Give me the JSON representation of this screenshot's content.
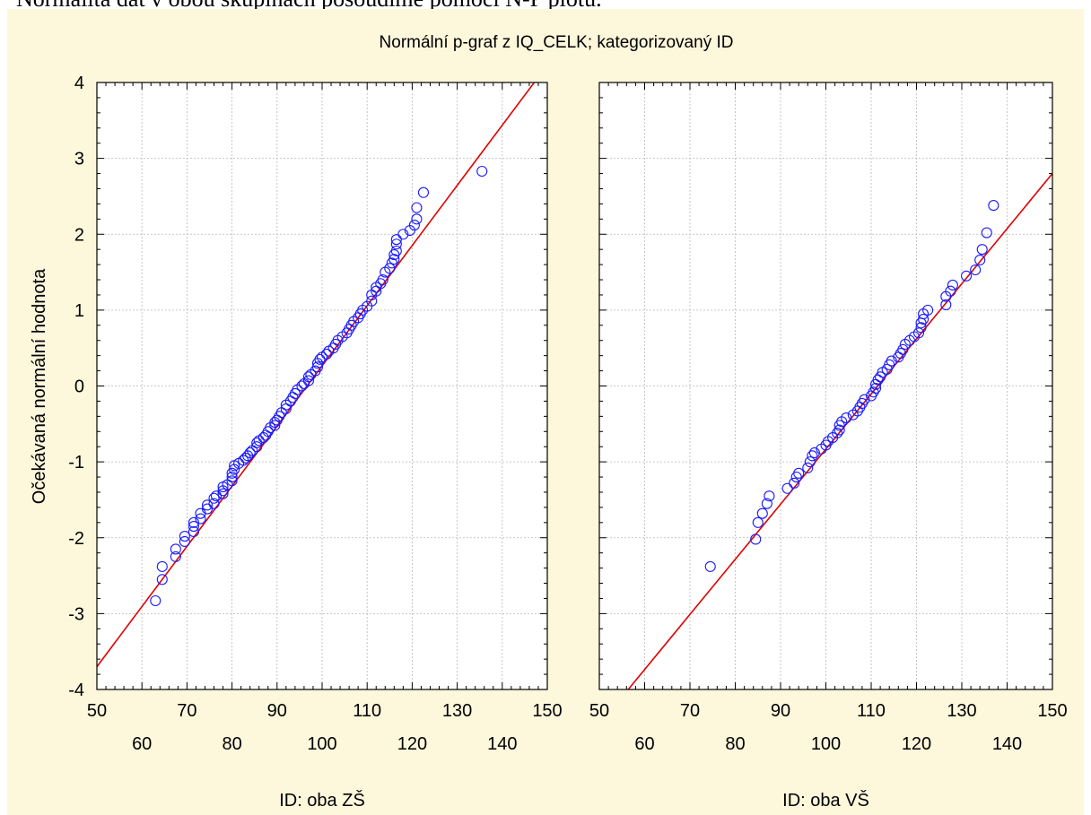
{
  "caption": "Normalita dat v obou skupinách posoudíme pomocí N-P plotu.",
  "chart_data": {
    "type": "scatter",
    "title": "Normální p-graf z IQ_CELK; kategorizovaný ID",
    "ylabel": "Očekávaná normální hodnota",
    "xlim": [
      50,
      150
    ],
    "ylim": [
      -4,
      4
    ],
    "x_ticks_top_row": [
      "50",
      "70",
      "90",
      "110",
      "130",
      "150"
    ],
    "x_ticks_bottom_row": [
      "60",
      "80",
      "100",
      "120",
      "140"
    ],
    "y_ticks": [
      "4",
      "3",
      "2",
      "1",
      "0",
      "-1",
      "-2",
      "-3",
      "-4"
    ],
    "grid": true,
    "panels": [
      {
        "xlabel": "ID: oba ZŠ",
        "line": {
          "x": [
            50,
            150
          ],
          "y": [
            -3.7,
            4.23
          ]
        },
        "points": [
          [
            63,
            -2.83
          ],
          [
            64.5,
            -2.55
          ],
          [
            64.5,
            -2.38
          ],
          [
            67.5,
            -2.25
          ],
          [
            67.5,
            -2.15
          ],
          [
            69.5,
            -2.05
          ],
          [
            69.5,
            -1.98
          ],
          [
            71.5,
            -1.92
          ],
          [
            71.5,
            -1.85
          ],
          [
            71.5,
            -1.8
          ],
          [
            73,
            -1.75
          ],
          [
            73,
            -1.68
          ],
          [
            74.5,
            -1.62
          ],
          [
            74.5,
            -1.57
          ],
          [
            76,
            -1.55
          ],
          [
            76,
            -1.48
          ],
          [
            76.5,
            -1.45
          ],
          [
            78,
            -1.42
          ],
          [
            78,
            -1.38
          ],
          [
            78,
            -1.33
          ],
          [
            79,
            -1.3
          ],
          [
            80,
            -1.25
          ],
          [
            80,
            -1.2
          ],
          [
            80,
            -1.15
          ],
          [
            80.5,
            -1.1
          ],
          [
            80.5,
            -1.05
          ],
          [
            81.5,
            -1.02
          ],
          [
            82.5,
            -0.98
          ],
          [
            83,
            -0.95
          ],
          [
            83.5,
            -0.92
          ],
          [
            84,
            -0.88
          ],
          [
            84.5,
            -0.85
          ],
          [
            85.5,
            -0.8
          ],
          [
            85.5,
            -0.75
          ],
          [
            86,
            -0.72
          ],
          [
            87,
            -0.68
          ],
          [
            87.5,
            -0.65
          ],
          [
            88,
            -0.6
          ],
          [
            88.5,
            -0.55
          ],
          [
            89.5,
            -0.52
          ],
          [
            89.5,
            -0.48
          ],
          [
            90,
            -0.45
          ],
          [
            90.5,
            -0.4
          ],
          [
            91,
            -0.35
          ],
          [
            92,
            -0.3
          ],
          [
            92,
            -0.25
          ],
          [
            93,
            -0.2
          ],
          [
            93.5,
            -0.15
          ],
          [
            94,
            -0.1
          ],
          [
            94.5,
            -0.05
          ],
          [
            95.5,
            0
          ],
          [
            96,
            0.03
          ],
          [
            97,
            0.07
          ],
          [
            97,
            0.12
          ],
          [
            97.5,
            0.15
          ],
          [
            98.5,
            0.2
          ],
          [
            99,
            0.25
          ],
          [
            99,
            0.3
          ],
          [
            99.5,
            0.35
          ],
          [
            100,
            0.38
          ],
          [
            101,
            0.42
          ],
          [
            101.5,
            0.46
          ],
          [
            102.5,
            0.5
          ],
          [
            103,
            0.55
          ],
          [
            103.5,
            0.6
          ],
          [
            104.5,
            0.65
          ],
          [
            105.5,
            0.7
          ],
          [
            106,
            0.75
          ],
          [
            106.5,
            0.8
          ],
          [
            107,
            0.85
          ],
          [
            108,
            0.9
          ],
          [
            108.5,
            0.95
          ],
          [
            109,
            1.0
          ],
          [
            110,
            1.05
          ],
          [
            111,
            1.12
          ],
          [
            111,
            1.2
          ],
          [
            112,
            1.25
          ],
          [
            112,
            1.3
          ],
          [
            113,
            1.35
          ],
          [
            113.5,
            1.4
          ],
          [
            114,
            1.5
          ],
          [
            115,
            1.55
          ],
          [
            115.5,
            1.62
          ],
          [
            116,
            1.67
          ],
          [
            116,
            1.73
          ],
          [
            116.5,
            1.78
          ],
          [
            116.5,
            1.87
          ],
          [
            116.5,
            1.93
          ],
          [
            118,
            2.0
          ],
          [
            119.5,
            2.05
          ],
          [
            120.5,
            2.12
          ],
          [
            121,
            2.2
          ],
          [
            121,
            2.35
          ],
          [
            122.5,
            2.55
          ],
          [
            135.5,
            2.83
          ]
        ]
      },
      {
        "xlabel": "ID: oba VŠ",
        "line": {
          "x": [
            55,
            150
          ],
          "y": [
            -4.1,
            2.8
          ]
        },
        "points": [
          [
            74.5,
            -2.38
          ],
          [
            84.5,
            -2.02
          ],
          [
            85,
            -1.8
          ],
          [
            86,
            -1.68
          ],
          [
            87,
            -1.55
          ],
          [
            87.5,
            -1.45
          ],
          [
            91.5,
            -1.35
          ],
          [
            93,
            -1.28
          ],
          [
            93.5,
            -1.2
          ],
          [
            94,
            -1.15
          ],
          [
            96,
            -1.08
          ],
          [
            96.5,
            -1.0
          ],
          [
            97,
            -0.92
          ],
          [
            97.5,
            -0.88
          ],
          [
            99,
            -0.83
          ],
          [
            100,
            -0.78
          ],
          [
            100.5,
            -0.73
          ],
          [
            101.5,
            -0.68
          ],
          [
            102.5,
            -0.62
          ],
          [
            103,
            -0.58
          ],
          [
            103,
            -0.52
          ],
          [
            103.5,
            -0.47
          ],
          [
            104.5,
            -0.42
          ],
          [
            106,
            -0.38
          ],
          [
            107,
            -0.33
          ],
          [
            107.5,
            -0.28
          ],
          [
            108,
            -0.23
          ],
          [
            108.5,
            -0.18
          ],
          [
            110,
            -0.13
          ],
          [
            110.5,
            -0.08
          ],
          [
            111,
            -0.03
          ],
          [
            111,
            0.02
          ],
          [
            111.5,
            0.08
          ],
          [
            112,
            0.12
          ],
          [
            112.5,
            0.18
          ],
          [
            113.5,
            0.22
          ],
          [
            114,
            0.28
          ],
          [
            114.5,
            0.33
          ],
          [
            116,
            0.38
          ],
          [
            116.5,
            0.43
          ],
          [
            117,
            0.48
          ],
          [
            117.5,
            0.55
          ],
          [
            118.5,
            0.6
          ],
          [
            119.5,
            0.65
          ],
          [
            120.5,
            0.7
          ],
          [
            121,
            0.77
          ],
          [
            121,
            0.83
          ],
          [
            121.5,
            0.88
          ],
          [
            121.5,
            0.95
          ],
          [
            122.5,
            1.0
          ],
          [
            126.5,
            1.07
          ],
          [
            126.5,
            1.18
          ],
          [
            127.5,
            1.25
          ],
          [
            128,
            1.33
          ],
          [
            131,
            1.45
          ],
          [
            133,
            1.53
          ],
          [
            134,
            1.66
          ],
          [
            134.5,
            1.8
          ],
          [
            135.5,
            2.02
          ],
          [
            137,
            2.38
          ]
        ]
      }
    ]
  }
}
